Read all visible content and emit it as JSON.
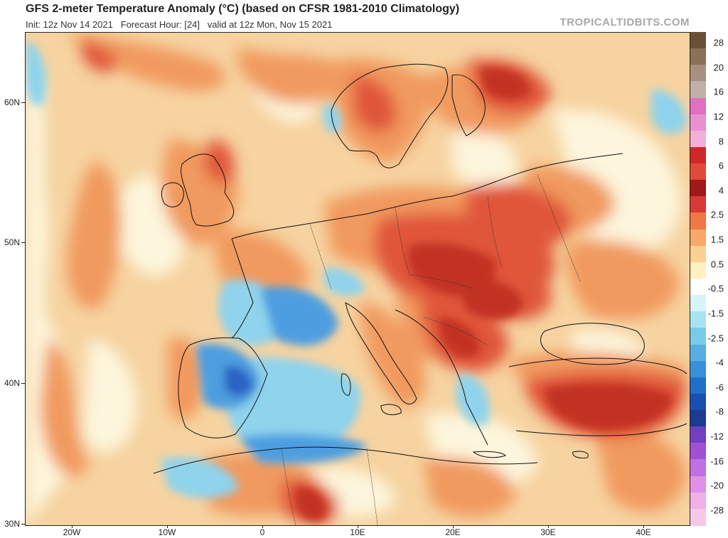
{
  "header": {
    "title": "GFS 2-meter Temperature Anomaly (°C) (based on CFSR 1981-2010 Climatology)",
    "subtitle": "Init: 12z Nov 14 2021   Forecast Hour: [24]   valid at 12z Mon, Nov 15 2021",
    "brand": "TROPICALTIDBITS.COM"
  },
  "axes": {
    "lat_labels": [
      "60N",
      "50N",
      "40N",
      "30N"
    ],
    "lon_labels": [
      "20W",
      "10W",
      "0",
      "10E",
      "20E",
      "30E",
      "40E"
    ]
  },
  "colorbar": {
    "labels": [
      "28",
      "20",
      "16",
      "12",
      "8",
      "6",
      "4",
      "2.5",
      "1.5",
      "0.5",
      "-0.5",
      "-1.5",
      "-2.5",
      "-4",
      "-6",
      "-8",
      "-12",
      "-16",
      "-20",
      "-28"
    ],
    "colors": [
      "#6b5038",
      "#8a7058",
      "#a89080",
      "#c0b0a8",
      "#e070c0",
      "#e890d0",
      "#f0b0d8",
      "#d02828",
      "#e04a3a",
      "#a01818",
      "#d83838",
      "#f07844",
      "#f8a868",
      "#fcd090",
      "#fef0c0",
      "#ffffff",
      "#d8f4f8",
      "#a8e4f0",
      "#78cce8",
      "#58aee0",
      "#3890d8",
      "#2070c8",
      "#1850b0",
      "#1c3c90",
      "#7040c0",
      "#a050d0",
      "#c070e0",
      "#e090e8",
      "#f0b0e8",
      "#f8c8e8"
    ]
  },
  "map": {
    "colors": {
      "ocean_warm": "#f6d3a0",
      "neutral": "#fdf5dc",
      "warm": "#f19a5e",
      "hot": "#e0573a",
      "very_hot": "#c23024",
      "cool": "#8fd3ec",
      "cold": "#4d9ee0",
      "very_cold": "#2a63c4",
      "border": "#111111"
    }
  }
}
